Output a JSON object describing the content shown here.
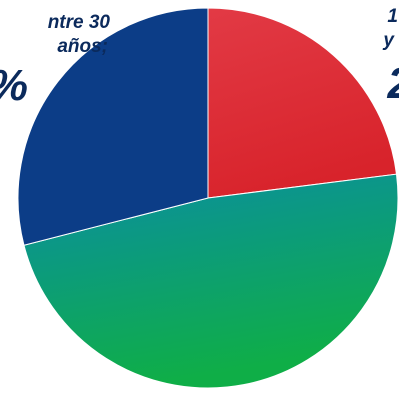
{
  "chart_data": {
    "type": "pie",
    "values": [
      23,
      48,
      29
    ],
    "colors": [
      [
        "#e23a45",
        "#d8232b"
      ],
      [
        "#0a8da3",
        "#0fae47"
      ],
      [
        "#0c3d87",
        "#0c3d87"
      ]
    ],
    "annotations": [
      {
        "slice": 0,
        "lines": [
          "1",
          "y"
        ],
        "value_text": "2"
      },
      {
        "slice": 2,
        "lines": [
          "ntre 30",
          "años;"
        ],
        "value_text": "%"
      }
    ]
  }
}
